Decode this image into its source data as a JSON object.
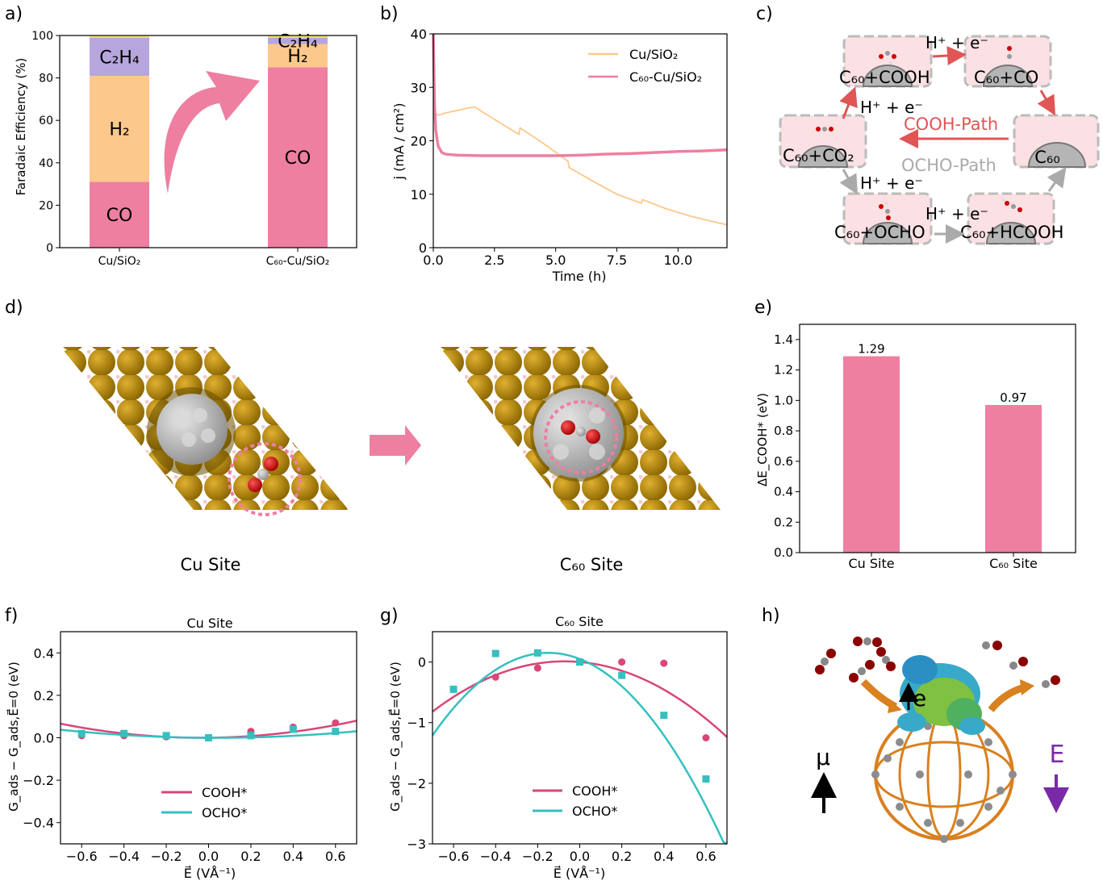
{
  "panel_labels": {
    "a": "a)",
    "b": "b)",
    "c": "c)",
    "d": "d)",
    "e": "e)",
    "f": "f)",
    "g": "g)",
    "h": "h)"
  },
  "colors": {
    "pink": "#ee7fa0",
    "orange": "#fdc88c",
    "purple": "#b6a6dd",
    "yellow": "#f3e66a",
    "teal": "#35c0bf",
    "crimson": "#d94677",
    "gold": "#b58900",
    "grey": "#a9a9a9",
    "red_arrow": "#e05555",
    "gray_arrow": "#aaaaaa",
    "violet": "#7a2aa8",
    "bronze": "#d9801f"
  },
  "chart_data": [
    {
      "id": "a",
      "type": "bar",
      "stacked": true,
      "categories": [
        "Cu/SiO2",
        "C60-Cu/SiO2"
      ],
      "category_display": [
        "Cu/SiO₂",
        "C₆₀-Cu/SiO₂"
      ],
      "series": [
        {
          "name": "CO",
          "label": "CO",
          "values": [
            31,
            85
          ]
        },
        {
          "name": "H2",
          "label": "H₂",
          "values": [
            50,
            11
          ]
        },
        {
          "name": "C2H4",
          "label": "C₂H₄",
          "values": [
            18,
            3
          ]
        },
        {
          "name": "other",
          "values": [
            1,
            1
          ]
        }
      ],
      "ylabel": "Faradaic Efficiency (%)",
      "ylim": [
        0,
        100
      ],
      "yticks": [
        0,
        20,
        40,
        60,
        80,
        100
      ]
    },
    {
      "id": "b",
      "type": "line",
      "xlabel": "Time (h)",
      "ylabel": "j (mA / cm²)",
      "xlim": [
        0,
        12
      ],
      "ylim": [
        0,
        40
      ],
      "xticks": [
        0.0,
        2.5,
        5.0,
        7.5,
        10.0
      ],
      "xtick_labels": [
        "0.0",
        "2.5",
        "5.0",
        "7.5",
        "10.0"
      ],
      "yticks": [
        0,
        10,
        20,
        30,
        40
      ],
      "legend": "top-right",
      "series": [
        {
          "name": "Cu/SiO₂",
          "x": [
            0,
            0.05,
            0.2,
            0.5,
            1.0,
            1.5,
            1.7,
            2.5,
            3.5,
            3.55,
            4.5,
            5.5,
            5.55,
            6.5,
            7.5,
            8.5,
            8.55,
            9.5,
            10.5,
            11.5,
            12
          ],
          "y": [
            40,
            25,
            24.8,
            25.2,
            25.7,
            26.2,
            26.3,
            24,
            21.2,
            22.4,
            19.5,
            16.2,
            15.0,
            12.5,
            10.0,
            8.3,
            9.0,
            7.3,
            5.9,
            4.8,
            4.3
          ]
        },
        {
          "name": "C₆₀-Cu/SiO₂",
          "x": [
            0,
            0.05,
            0.1,
            0.2,
            0.35,
            0.5,
            1,
            2,
            3,
            4,
            5,
            6,
            7,
            8,
            9,
            10,
            11,
            12
          ],
          "y": [
            40,
            27,
            22,
            19,
            17.8,
            17.5,
            17.3,
            17.2,
            17.2,
            17.2,
            17.2,
            17.3,
            17.5,
            17.6,
            17.8,
            18.0,
            18.1,
            18.3
          ]
        }
      ]
    },
    {
      "id": "e",
      "type": "bar",
      "categories": [
        "Cu Site",
        "C60 Site"
      ],
      "category_display": [
        "Cu Site",
        "C₆₀ Site"
      ],
      "values": [
        1.29,
        0.97
      ],
      "value_labels": [
        "1.29",
        "0.97"
      ],
      "ylabel": "ΔE_COOH* (eV)",
      "ylim": [
        0,
        1.5
      ],
      "yticks": [
        0.0,
        0.2,
        0.4,
        0.6,
        0.8,
        1.0,
        1.2,
        1.4
      ],
      "ytick_labels": [
        "0.0",
        "0.2",
        "0.4",
        "0.6",
        "0.8",
        "1.0",
        "1.2",
        "1.4"
      ]
    },
    {
      "id": "f",
      "type": "scatter",
      "title": "Cu Site",
      "xlabel": "E⃗ (VÅ⁻¹)",
      "ylabel": "G_ads − G_ads,E⃗=0 (eV)",
      "xlim": [
        -0.7,
        0.7
      ],
      "ylim": [
        -0.5,
        0.5
      ],
      "xticks": [
        -0.6,
        -0.4,
        -0.2,
        0.0,
        0.2,
        0.4,
        0.6
      ],
      "xtick_labels": [
        "−0.6",
        "−0.4",
        "−0.2",
        "0.0",
        "0.2",
        "0.4",
        "0.6"
      ],
      "yticks": [
        -0.4,
        -0.2,
        0.0,
        0.2,
        0.4
      ],
      "ytick_labels": [
        "−0.4",
        "−0.2",
        "0.0",
        "0.2",
        "0.4"
      ],
      "legend": "lower-center",
      "series": [
        {
          "name": "COOH*",
          "x": [
            -0.6,
            -0.4,
            -0.2,
            0.0,
            0.2,
            0.4,
            0.6
          ],
          "y": [
            0.01,
            0.01,
            0.005,
            0.0,
            0.03,
            0.05,
            0.07
          ],
          "fit": [
            0.15,
            0.01,
            0.0
          ]
        },
        {
          "name": "OCHO*",
          "x": [
            -0.6,
            -0.4,
            -0.2,
            0.0,
            0.2,
            0.4,
            0.6
          ],
          "y": [
            0.02,
            0.02,
            0.01,
            0.0,
            0.01,
            0.04,
            0.03
          ],
          "fit": [
            0.07,
            -0.005,
            0.0
          ]
        }
      ]
    },
    {
      "id": "g",
      "type": "scatter",
      "title": "C₆₀ Site",
      "xlabel": "E⃗ (VÅ⁻¹)",
      "ylabel": "G_ads − G_ads,E⃗=0 (eV)",
      "xlim": [
        -0.7,
        0.7
      ],
      "ylim": [
        -3,
        0.5
      ],
      "xticks": [
        -0.6,
        -0.4,
        -0.2,
        0.0,
        0.2,
        0.4,
        0.6
      ],
      "xtick_labels": [
        "−0.6",
        "−0.4",
        "−0.2",
        "0.0",
        "0.2",
        "0.4",
        "0.6"
      ],
      "yticks": [
        -3,
        -2,
        -1,
        0
      ],
      "ytick_labels": [
        "−3",
        "−2",
        "−1",
        "0"
      ],
      "legend": "lower-center",
      "series": [
        {
          "name": "COOH*",
          "x": [
            -0.6,
            -0.4,
            -0.2,
            0.0,
            0.2,
            0.4,
            0.6
          ],
          "y": [
            -0.45,
            -0.25,
            -0.1,
            0.0,
            0.0,
            -0.02,
            -1.25
          ],
          "fit": [
            -2.1,
            -0.3,
            0.0
          ]
        },
        {
          "name": "OCHO*",
          "x": [
            -0.6,
            -0.4,
            -0.2,
            0.0,
            0.2,
            0.4,
            0.6
          ],
          "y": [
            -0.45,
            0.14,
            0.15,
            0.0,
            -0.22,
            -0.88,
            -1.93
          ],
          "fit": [
            -4.5,
            -1.35,
            0.05
          ]
        }
      ]
    }
  ],
  "panel_c": {
    "states": {
      "cooh": "C₆₀+COOH",
      "co": "C₆₀+CO",
      "c60": "C₆₀",
      "co2": "C₆₀+CO₂",
      "ocho": "C₆₀+OCHO",
      "hcooh": "C₆₀+HCOOH"
    },
    "steps": {
      "s1": "H⁺ + e⁻",
      "s2": "H⁺ + e⁻",
      "s3": "H⁺ + e⁻",
      "s4": "H⁺ + e⁻"
    },
    "paths": {
      "cooh": "COOH-Path",
      "ocho": "OCHO-Path"
    }
  },
  "panel_d": {
    "left_caption": "Cu Site",
    "right_caption": "C₆₀ Site"
  },
  "panel_h": {
    "electron": "e",
    "dipole": "μ",
    "field": "E"
  }
}
